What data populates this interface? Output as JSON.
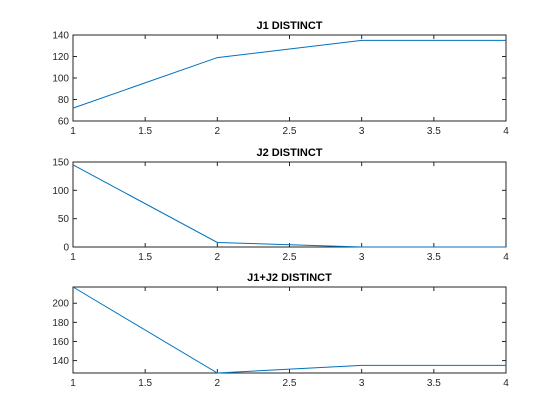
{
  "chart_data": [
    {
      "type": "line",
      "title": "J1 DISTINCT",
      "xlabel": "",
      "ylabel": "",
      "x": [
        1,
        2,
        3,
        4
      ],
      "series": [
        {
          "values": [
            72,
            119,
            135,
            135
          ]
        }
      ],
      "xlim": [
        1,
        4
      ],
      "ylim": [
        60,
        140
      ],
      "xticks": [
        1,
        1.5,
        2,
        2.5,
        3,
        3.5,
        4
      ],
      "xtick_labels": [
        "1",
        "1.5",
        "2",
        "2.5",
        "3",
        "3.5",
        "4"
      ],
      "yticks": [
        60,
        80,
        100,
        120,
        140
      ],
      "ytick_labels": [
        "60",
        "80",
        "100",
        "120",
        "140"
      ],
      "grid": false,
      "line_color": "#0072BD"
    },
    {
      "type": "line",
      "title": "J2 DISTINCT",
      "xlabel": "",
      "ylabel": "",
      "x": [
        1,
        2,
        3,
        4
      ],
      "series": [
        {
          "values": [
            145,
            8,
            0,
            0
          ]
        }
      ],
      "xlim": [
        1,
        4
      ],
      "ylim": [
        0,
        150
      ],
      "xticks": [
        1,
        1.5,
        2,
        2.5,
        3,
        3.5,
        4
      ],
      "xtick_labels": [
        "1",
        "1.5",
        "2",
        "2.5",
        "3",
        "3.5",
        "4"
      ],
      "yticks": [
        0,
        50,
        100,
        150
      ],
      "ytick_labels": [
        "0",
        "50",
        "100",
        "150"
      ],
      "grid": false,
      "line_color": "#0072BD"
    },
    {
      "type": "line",
      "title": "J1+J2 DISTINCT",
      "xlabel": "",
      "ylabel": "",
      "x": [
        1,
        2,
        3,
        4
      ],
      "series": [
        {
          "values": [
            217,
            127,
            135,
            135
          ]
        }
      ],
      "xlim": [
        1,
        4
      ],
      "ylim": [
        127,
        217
      ],
      "xticks": [
        1,
        1.5,
        2,
        2.5,
        3,
        3.5,
        4
      ],
      "xtick_labels": [
        "1",
        "1.5",
        "2",
        "2.5",
        "3",
        "3.5",
        "4"
      ],
      "yticks": [
        140,
        160,
        180,
        200
      ],
      "ytick_labels": [
        "140",
        "160",
        "180",
        "200"
      ],
      "grid": false,
      "line_color": "#0072BD"
    }
  ]
}
